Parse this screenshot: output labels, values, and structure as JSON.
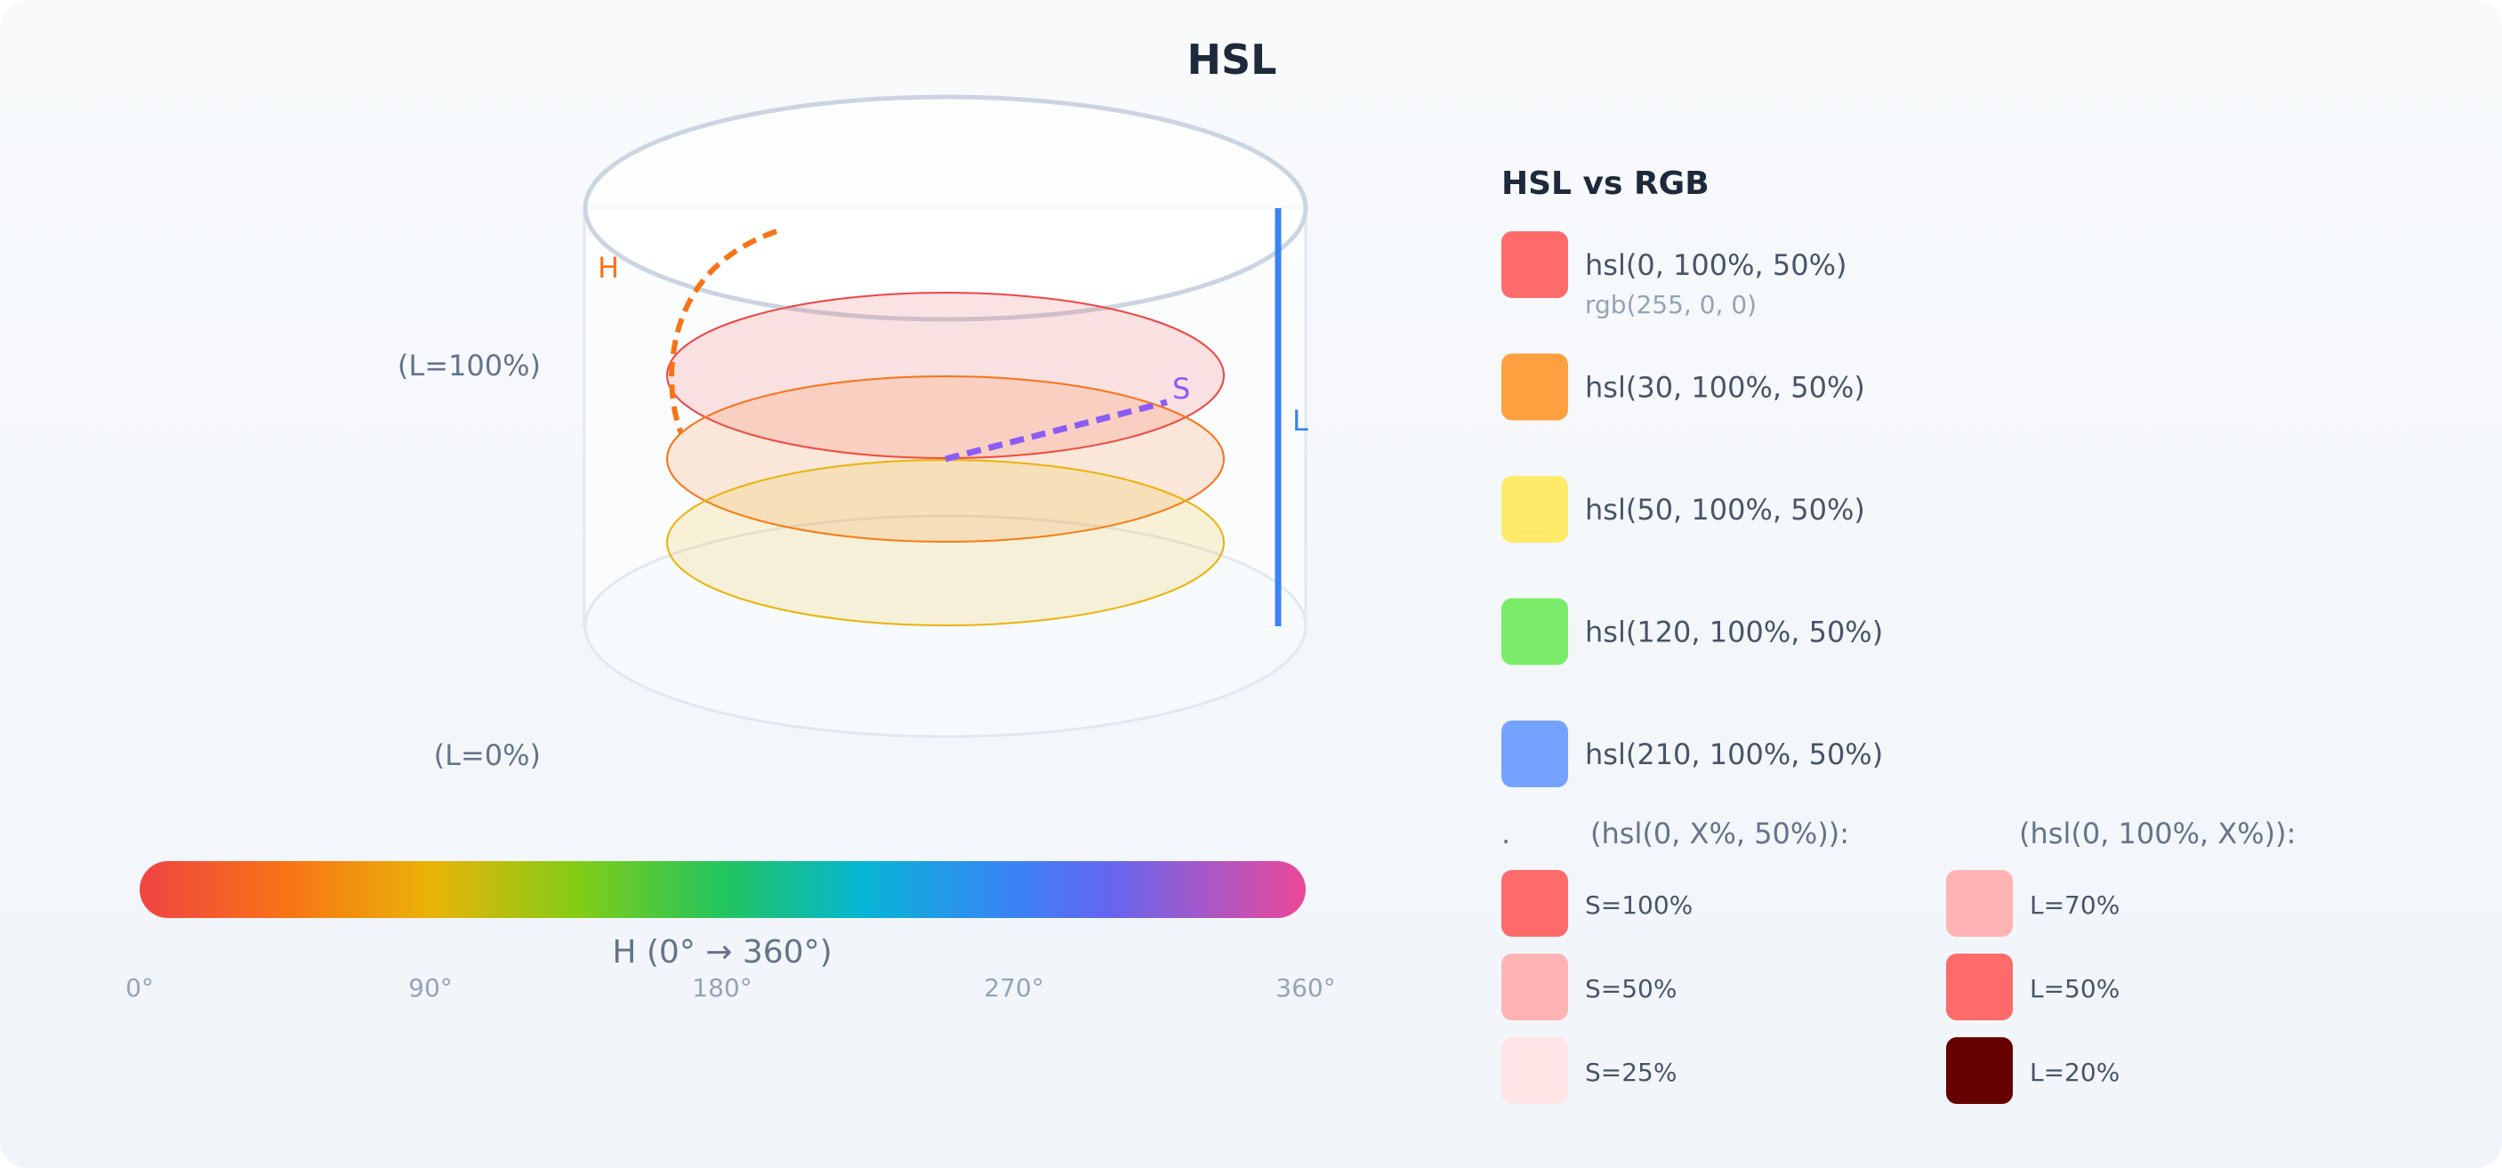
{
  "title": "HSL",
  "diagram": {
    "label_top": "(L=100%)",
    "label_bottom": "(L=0%)",
    "axis_h": "H",
    "axis_s": "S",
    "axis_l": "L",
    "disk_colors": [
      "#ef4444",
      "#f97316",
      "#eab308"
    ]
  },
  "hue_bar": {
    "label": "H (0° → 360°)",
    "ticks": [
      "0°",
      "90°",
      "180°",
      "270°",
      "360°"
    ]
  },
  "panel": {
    "title": "HSL vs RGB",
    "swatches": [
      {
        "hsl": "hsl(0, 100%, 50%)",
        "rgb": "rgb(255, 0, 0)",
        "color": "#ff6b6b"
      },
      {
        "hsl": "hsl(30, 100%, 50%)",
        "color": "#ffa040"
      },
      {
        "hsl": "hsl(50, 100%, 50%)",
        "color": "#ffea6a"
      },
      {
        "hsl": "hsl(120, 100%, 50%)",
        "color": "#7aec6a"
      },
      {
        "hsl": "hsl(210, 100%, 50%)",
        "color": "#74a3ff"
      }
    ],
    "saturation_header_dot": ".",
    "saturation_header": "(hsl(0, X%, 50%)):",
    "lightness_header": "(hsl(0, 100%, X%)):",
    "saturation": [
      {
        "label": "S=100%",
        "color": "#ff6b6b"
      },
      {
        "label": "S=50%",
        "color": "#ffb3b3"
      },
      {
        "label": "S=25%",
        "color": "#ffe5e5"
      }
    ],
    "lightness": [
      {
        "label": "L=70%",
        "color": "#ffb3b3"
      },
      {
        "label": "L=50%",
        "color": "#ff6b6b"
      },
      {
        "label": "L=20%",
        "color": "#660000"
      }
    ]
  }
}
